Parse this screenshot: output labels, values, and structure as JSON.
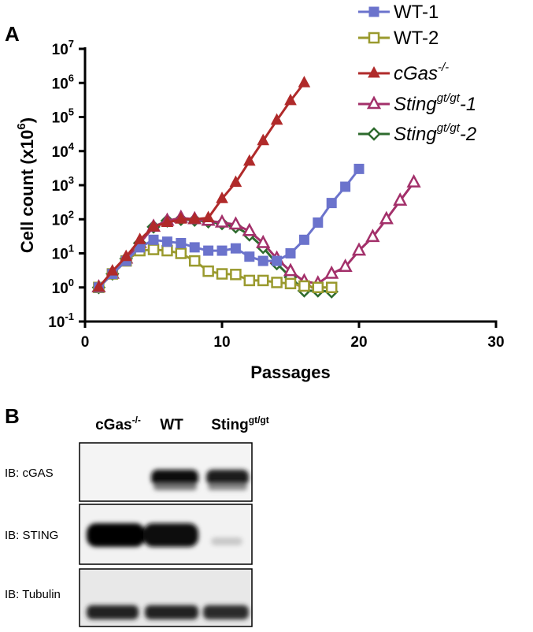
{
  "panel_labels": [
    "A",
    "B"
  ],
  "chart_data": {
    "type": "line",
    "log_scale_y": true,
    "x_label": "Passages",
    "y_label": [
      "Cell count (x10",
      "6",
      ")"
    ],
    "xlim": [
      0,
      30
    ],
    "xticks": [
      0,
      10,
      20,
      30
    ],
    "ylim": [
      0.1,
      10000000
    ],
    "yticks": [
      {
        "value": 0.1,
        "label": "10",
        "exponent": "-1"
      },
      {
        "value": 1,
        "label": "10",
        "exponent": "0"
      },
      {
        "value": 10,
        "label": "10",
        "exponent": "1"
      },
      {
        "value": 100,
        "label": "10",
        "exponent": "2"
      },
      {
        "value": 1000,
        "label": "10",
        "exponent": "3"
      },
      {
        "value": 10000,
        "label": "10",
        "exponent": "4"
      },
      {
        "value": 100000,
        "label": "10",
        "exponent": "5"
      },
      {
        "value": 1000000,
        "label": "10",
        "exponent": "6"
      },
      {
        "value": 10000000,
        "label": "10",
        "exponent": "7"
      }
    ],
    "series": [
      {
        "name": [
          "Sting",
          "gt/gt",
          "-2"
        ],
        "italic": true,
        "color": "#2e6b2e",
        "marker": "diamond",
        "filled": false,
        "x": [
          1,
          2,
          3,
          4,
          5,
          6,
          7,
          8,
          9,
          10,
          11,
          12,
          13,
          14,
          15,
          16,
          17,
          18
        ],
        "values": [
          1,
          2.5,
          7,
          20,
          60,
          90,
          100,
          95,
          85,
          75,
          60,
          35,
          15,
          5,
          2,
          0.8,
          0.8,
          0.75
        ]
      },
      {
        "name": [
          "Sting",
          "gt/gt",
          "-1"
        ],
        "italic": true,
        "color": "#a3306a",
        "marker": "triangle",
        "filled": false,
        "x": [
          1,
          2,
          3,
          4,
          5,
          6,
          7,
          8,
          9,
          10,
          11,
          12,
          13,
          14,
          15,
          16,
          17,
          18,
          19,
          20,
          21,
          22,
          23,
          24
        ],
        "values": [
          1,
          2.5,
          7,
          20,
          60,
          90,
          110,
          100,
          90,
          80,
          70,
          45,
          20,
          7,
          3,
          1.5,
          1.3,
          2.5,
          4,
          12,
          30,
          100,
          350,
          1200
        ]
      },
      {
        "name": [
          "WT-2"
        ],
        "italic": false,
        "color": "#9a9a2e",
        "marker": "square",
        "filled": false,
        "x": [
          1,
          2,
          3,
          4,
          5,
          6,
          7,
          8,
          9,
          10,
          11,
          12,
          13,
          14,
          15,
          16,
          17,
          18
        ],
        "values": [
          1,
          2.5,
          6,
          12,
          13,
          12,
          10,
          6,
          3,
          2.5,
          2.4,
          1.6,
          1.6,
          1.4,
          1.3,
          1.1,
          1.0,
          1.0
        ]
      },
      {
        "name": [
          "WT-1"
        ],
        "italic": false,
        "color": "#6b73cc",
        "marker": "square",
        "filled": true,
        "x": [
          1,
          2,
          3,
          4,
          5,
          6,
          7,
          8,
          9,
          10,
          11,
          12,
          13,
          14,
          15,
          16,
          17,
          18,
          19,
          20
        ],
        "values": [
          1,
          2.5,
          6,
          15,
          25,
          22,
          20,
          15,
          12,
          12,
          14,
          8,
          6,
          6,
          10,
          25,
          80,
          300,
          900,
          3000
        ]
      },
      {
        "name": [
          "cGas",
          "-/-"
        ],
        "italic": true,
        "color": "#b02a2a",
        "marker": "triangle",
        "filled": true,
        "x": [
          1,
          2,
          3,
          4,
          5,
          6,
          7,
          8,
          9,
          10,
          11,
          12,
          13,
          14,
          15,
          16
        ],
        "values": [
          1,
          3,
          8,
          25,
          60,
          80,
          100,
          100,
          110,
          400,
          1200,
          5000,
          20000,
          80000,
          300000,
          1000000
        ]
      }
    ],
    "legend_order": [
      3,
      2,
      4,
      1,
      0
    ]
  },
  "blot": {
    "lanes": [
      [
        "cGas",
        "-/-"
      ],
      [
        "WT"
      ],
      [
        "Sting",
        "gt/gt"
      ]
    ],
    "rows": [
      "IB: cGAS",
      "IB: STING",
      "IB: Tubulin"
    ]
  }
}
